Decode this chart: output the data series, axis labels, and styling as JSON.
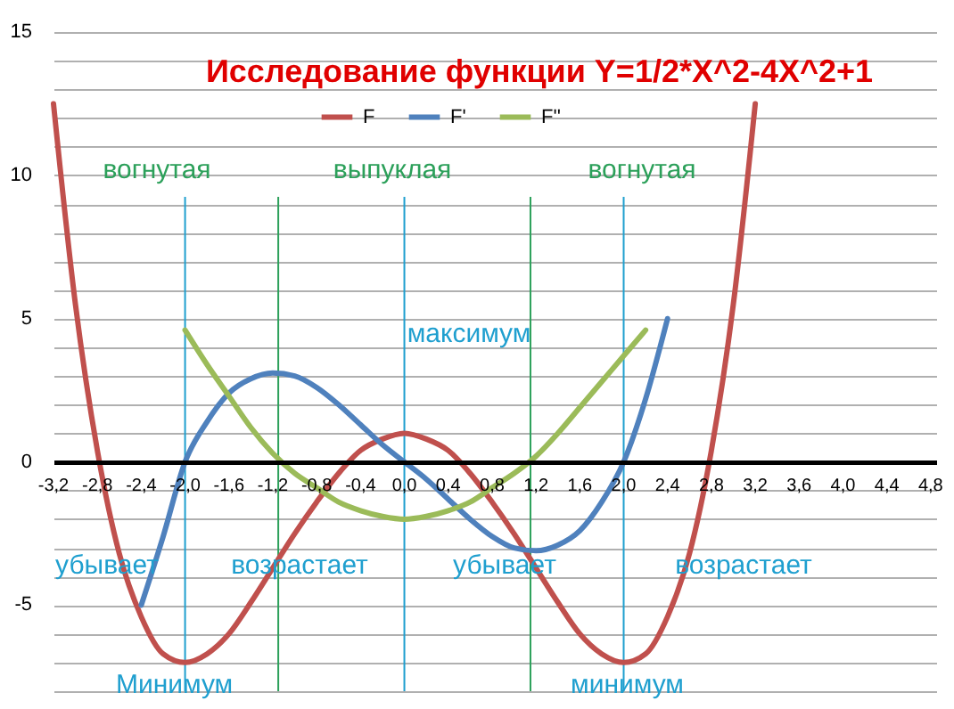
{
  "chart_data": {
    "type": "line",
    "title": "Исследование функции Y=1/2*X^2-4X^2+1",
    "legend": "top",
    "grid": "y",
    "line_style": "solid",
    "marker": "none",
    "xlim": [
      -3.2,
      4.85
    ],
    "ylim": [
      -8,
      15
    ],
    "xticks": [
      {
        "value": -3.2,
        "label": "-3,2"
      },
      {
        "value": -2.8,
        "label": "-2,8"
      },
      {
        "value": -2.4,
        "label": "-2,4"
      },
      {
        "value": -2.0,
        "label": "-2,0"
      },
      {
        "value": -1.6,
        "label": "-1,6"
      },
      {
        "value": -1.2,
        "label": "-1,2"
      },
      {
        "value": -0.8,
        "label": "-0,8"
      },
      {
        "value": -0.4,
        "label": "-0,4"
      },
      {
        "value": 0,
        "label": "0,0"
      },
      {
        "value": 0.4,
        "label": "0,4"
      },
      {
        "value": 0.8,
        "label": "0,8"
      },
      {
        "value": 1.2,
        "label": "1,2"
      },
      {
        "value": 1.6,
        "label": "1,6"
      },
      {
        "value": 2.0,
        "label": "2,0"
      },
      {
        "value": 2.4,
        "label": "2,4"
      },
      {
        "value": 2.8,
        "label": "2,8"
      },
      {
        "value": 3.2,
        "label": "3,2"
      },
      {
        "value": 3.6,
        "label": "3,6"
      },
      {
        "value": 4.0,
        "label": "4,0"
      },
      {
        "value": 4.4,
        "label": "4,4"
      },
      {
        "value": 4.8,
        "label": "4,8"
      }
    ],
    "yticks": [
      {
        "value": -8,
        "label": null
      },
      {
        "value": -7,
        "label": null
      },
      {
        "value": -6,
        "label": null
      },
      -5,
      {
        "value": -4,
        "label": null
      },
      {
        "value": -3,
        "label": null
      },
      {
        "value": -2,
        "label": null
      },
      {
        "value": -1,
        "label": null
      },
      0,
      {
        "value": 1,
        "label": null
      },
      {
        "value": 2,
        "label": null
      },
      {
        "value": 3,
        "label": null
      },
      {
        "value": 4,
        "label": null
      },
      5,
      {
        "value": 6,
        "label": null
      },
      {
        "value": 7,
        "label": null
      },
      {
        "value": 8,
        "label": null
      },
      {
        "value": 9,
        "label": null
      },
      10,
      {
        "value": 11,
        "label": null
      },
      {
        "value": 12,
        "label": null
      },
      {
        "value": 13,
        "label": null
      },
      {
        "value": 14,
        "label": null
      },
      15
    ],
    "series": [
      {
        "name": "F",
        "color": "#c0504d",
        "x": [
          -3.2,
          -3.0,
          -2.8,
          -2.6,
          -2.4,
          -2.2,
          -2.0,
          -1.8,
          -1.6,
          -1.4,
          -1.2,
          -1.0,
          -0.8,
          -0.6,
          -0.4,
          -0.2,
          0,
          0.2,
          0.4,
          0.6,
          0.8,
          1.0,
          1.2,
          1.4,
          1.6,
          1.8,
          2.0,
          2.2,
          2.4,
          2.6,
          2.8,
          3.0,
          3.2
        ],
        "values": [
          12.5,
          5.5,
          0.4,
          -3.2,
          -5.4,
          -6.7,
          -7,
          -6.7,
          -6,
          -4.9,
          -3.7,
          -2.5,
          -1.4,
          -0.4,
          0.4,
          0.8,
          1,
          0.8,
          0.4,
          -0.4,
          -1.4,
          -2.5,
          -3.7,
          -4.9,
          -6,
          -6.7,
          -7,
          -6.7,
          -5.4,
          -3.2,
          0.4,
          5.5,
          12.5
        ]
      },
      {
        "name": "F'",
        "color": "#4f81bd",
        "x": [
          -2.4,
          -2.2,
          -2.0,
          -1.8,
          -1.6,
          -1.4,
          -1.2,
          -1.0,
          -0.8,
          -0.6,
          -0.4,
          -0.2,
          0,
          0.2,
          0.4,
          0.6,
          0.8,
          1.0,
          1.2,
          1.4,
          1.6,
          1.8,
          2.0,
          2.2,
          2.4
        ],
        "values": [
          -5,
          -2.6,
          0,
          1.4,
          2.4,
          2.9,
          3.1,
          3,
          2.6,
          2,
          1.3,
          0.6,
          0,
          -0.6,
          -1.3,
          -2,
          -2.6,
          -3,
          -3.1,
          -2.9,
          -2.4,
          -1.4,
          0,
          2.2,
          5
        ]
      },
      {
        "name": "F''",
        "color": "#9bbb59",
        "x": [
          -2.0,
          -1.8,
          -1.6,
          -1.4,
          -1.2,
          -1.0,
          -0.8,
          -0.6,
          -0.4,
          -0.2,
          0,
          0.2,
          0.4,
          0.6,
          0.8,
          1.0,
          1.2,
          1.4,
          1.6,
          1.8,
          2.0,
          2.2
        ],
        "values": [
          4.6,
          3.4,
          2.3,
          1.2,
          0.3,
          -0.4,
          -0.9,
          -1.4,
          -1.7,
          -1.9,
          -2,
          -1.9,
          -1.7,
          -1.4,
          -0.9,
          -0.4,
          0.2,
          1,
          1.9,
          2.8,
          3.7,
          4.6
        ]
      }
    ],
    "ref_lines": [
      {
        "axis": "x",
        "value": -1.15,
        "color": "#2ca05a"
      },
      {
        "axis": "x",
        "value": 1.15,
        "color": "#2ca05a"
      },
      {
        "axis": "x",
        "value": -2,
        "color": "#1f9fcf"
      },
      {
        "axis": "x",
        "value": 0,
        "color": "#1f9fcf"
      },
      {
        "axis": "x",
        "value": 2,
        "color": "#1f9fcf"
      }
    ],
    "annotations": [
      "вогнутая",
      "выпуклая",
      "вогнутая",
      "максимум",
      "убывает",
      "возрастает",
      "убывает",
      "возрастает",
      {
        "text": "Минимум",
        "x": -2,
        "y": -7
      },
      {
        "text": "минимум",
        "x": 2,
        "y": -7
      }
    ]
  }
}
